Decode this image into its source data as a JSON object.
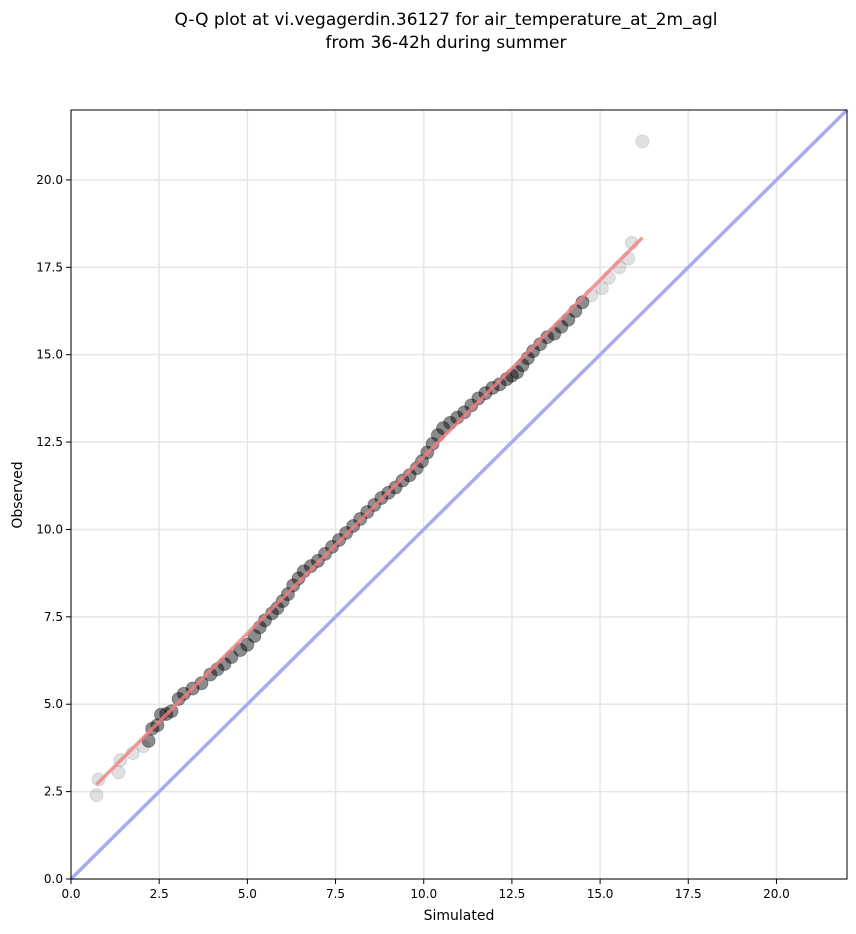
{
  "chart_data": {
    "type": "scatter",
    "title_line1": "Q-Q plot at vi.vegagerdin.36127 for air_temperature_at_2m_agl",
    "title_line2": "from 36-42h during summer",
    "xlabel": "Simulated",
    "ylabel": "Observed",
    "xlim": [
      0,
      22
    ],
    "ylim": [
      0,
      22
    ],
    "xticks": [
      0,
      2.5,
      5,
      7.5,
      10,
      12.5,
      15,
      17.5,
      20
    ],
    "yticks": [
      0,
      2.5,
      5,
      7.5,
      10,
      12.5,
      15,
      17.5,
      20
    ],
    "xtick_labels": [
      "0.0",
      "2.5",
      "5.0",
      "7.5",
      "10.0",
      "12.5",
      "15.0",
      "17.5",
      "20.0"
    ],
    "ytick_labels": [
      "0.0",
      "2.5",
      "5.0",
      "7.5",
      "10.0",
      "12.5",
      "15.0",
      "17.5",
      "20.0"
    ],
    "grid": true,
    "quantile_points": [
      [
        0.72,
        2.4
      ],
      [
        0.78,
        2.85
      ],
      [
        1.35,
        3.05
      ],
      [
        1.4,
        3.4
      ],
      [
        1.75,
        3.6
      ],
      [
        2.05,
        3.8
      ],
      [
        2.2,
        3.95
      ],
      [
        2.3,
        4.3
      ],
      [
        2.45,
        4.4
      ],
      [
        2.55,
        4.7
      ],
      [
        2.7,
        4.72
      ],
      [
        2.85,
        4.8
      ],
      [
        3.05,
        5.15
      ],
      [
        3.2,
        5.3
      ],
      [
        3.45,
        5.45
      ],
      [
        3.7,
        5.6
      ],
      [
        3.95,
        5.85
      ],
      [
        4.15,
        6.0
      ],
      [
        4.35,
        6.15
      ],
      [
        4.55,
        6.35
      ],
      [
        4.8,
        6.55
      ],
      [
        5.0,
        6.7
      ],
      [
        5.2,
        6.95
      ],
      [
        5.35,
        7.2
      ],
      [
        5.5,
        7.4
      ],
      [
        5.7,
        7.6
      ],
      [
        5.85,
        7.75
      ],
      [
        6.0,
        7.95
      ],
      [
        6.15,
        8.15
      ],
      [
        6.3,
        8.4
      ],
      [
        6.45,
        8.6
      ],
      [
        6.6,
        8.8
      ],
      [
        6.8,
        8.95
      ],
      [
        7.0,
        9.1
      ],
      [
        7.2,
        9.3
      ],
      [
        7.4,
        9.5
      ],
      [
        7.6,
        9.7
      ],
      [
        7.8,
        9.9
      ],
      [
        8.0,
        10.1
      ],
      [
        8.2,
        10.3
      ],
      [
        8.4,
        10.5
      ],
      [
        8.6,
        10.7
      ],
      [
        8.8,
        10.9
      ],
      [
        9.0,
        11.05
      ],
      [
        9.2,
        11.2
      ],
      [
        9.4,
        11.4
      ],
      [
        9.6,
        11.55
      ],
      [
        9.8,
        11.75
      ],
      [
        9.95,
        11.95
      ],
      [
        10.1,
        12.2
      ],
      [
        10.25,
        12.45
      ],
      [
        10.4,
        12.7
      ],
      [
        10.55,
        12.9
      ],
      [
        10.75,
        13.05
      ],
      [
        10.95,
        13.2
      ],
      [
        11.15,
        13.35
      ],
      [
        11.35,
        13.55
      ],
      [
        11.55,
        13.75
      ],
      [
        11.75,
        13.9
      ],
      [
        11.95,
        14.05
      ],
      [
        12.15,
        14.15
      ],
      [
        12.35,
        14.3
      ],
      [
        12.5,
        14.4
      ],
      [
        12.65,
        14.5
      ],
      [
        12.8,
        14.7
      ],
      [
        12.95,
        14.9
      ],
      [
        13.1,
        15.1
      ],
      [
        13.3,
        15.3
      ],
      [
        13.5,
        15.5
      ],
      [
        13.7,
        15.6
      ],
      [
        13.9,
        15.8
      ],
      [
        14.1,
        16.0
      ],
      [
        14.3,
        16.25
      ],
      [
        14.5,
        16.5
      ],
      [
        14.75,
        16.7
      ],
      [
        15.05,
        16.9
      ],
      [
        15.25,
        17.2
      ],
      [
        15.55,
        17.5
      ],
      [
        15.8,
        17.75
      ],
      [
        15.9,
        18.2
      ],
      [
        16.2,
        21.1
      ]
    ],
    "fit_line": {
      "x": [
        0.72,
        16.2
      ],
      "y": [
        2.7,
        18.35
      ],
      "color": "#f08080"
    },
    "reference_line": {
      "x": [
        0,
        22
      ],
      "y": [
        0,
        22
      ],
      "color": "#aaaaf0"
    },
    "point_color": "#000000"
  }
}
